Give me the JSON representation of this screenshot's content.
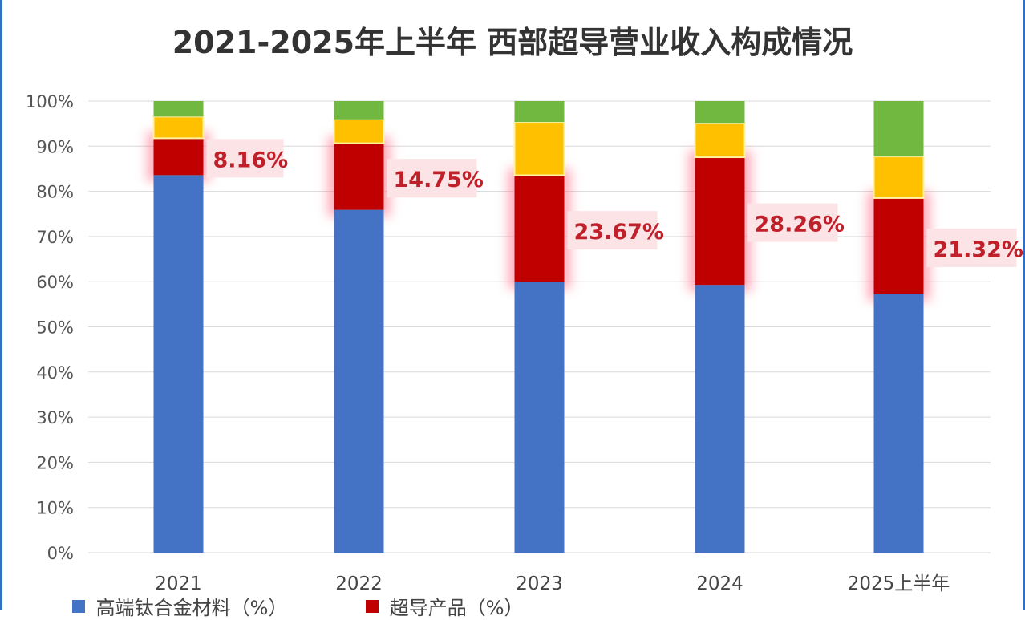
{
  "chart_data": {
    "type": "bar",
    "stacked": true,
    "title": "2021-2025年上半年 西部超导营业收入构成情况",
    "categories": [
      "2021",
      "2022",
      "2023",
      "2024",
      "2025上半年"
    ],
    "ylim": [
      0,
      100
    ],
    "yticks": [
      "0%",
      "10%",
      "20%",
      "30%",
      "40%",
      "50%",
      "60%",
      "70%",
      "80%",
      "90%",
      "100%"
    ],
    "grid": true,
    "legend_position": "bottom",
    "series": [
      {
        "name": "高端钛合金材料（%）",
        "color": "#4472c4",
        "values": [
          83.6,
          75.9,
          59.9,
          59.3,
          57.2
        ]
      },
      {
        "name": "超导产品（%）",
        "color": "#c00000",
        "values": [
          8.16,
          14.75,
          23.67,
          28.26,
          21.32
        ]
      },
      {
        "color": "#ffc000",
        "values": [
          4.8,
          5.3,
          11.8,
          7.6,
          9.2
        ]
      },
      {
        "color": "#70b840",
        "values": [
          3.44,
          4.05,
          4.63,
          4.84,
          12.28
        ]
      }
    ],
    "data_labels": [
      "8.16%",
      "14.75%",
      "23.67%",
      "28.26%",
      "21.32%"
    ]
  }
}
